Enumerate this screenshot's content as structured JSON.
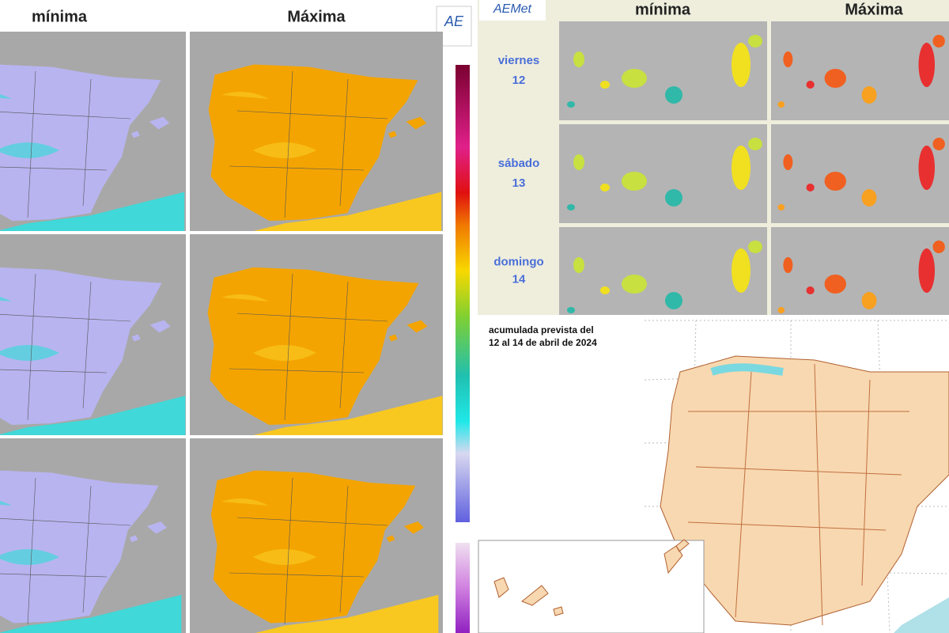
{
  "left_panel": {
    "col_min": "mínima",
    "col_max": "Máxima"
  },
  "canarias_panel": {
    "logo": "AEMet",
    "col_min": "mínima",
    "col_max": "Máxima",
    "days": [
      {
        "name": "viernes",
        "num": "12"
      },
      {
        "name": "sábado",
        "num": "13"
      },
      {
        "name": "domingo",
        "num": "14"
      }
    ]
  },
  "precip_panel": {
    "line1": "acumulada prevista del",
    "line2": "12 al 14 de abril de 2024"
  }
}
